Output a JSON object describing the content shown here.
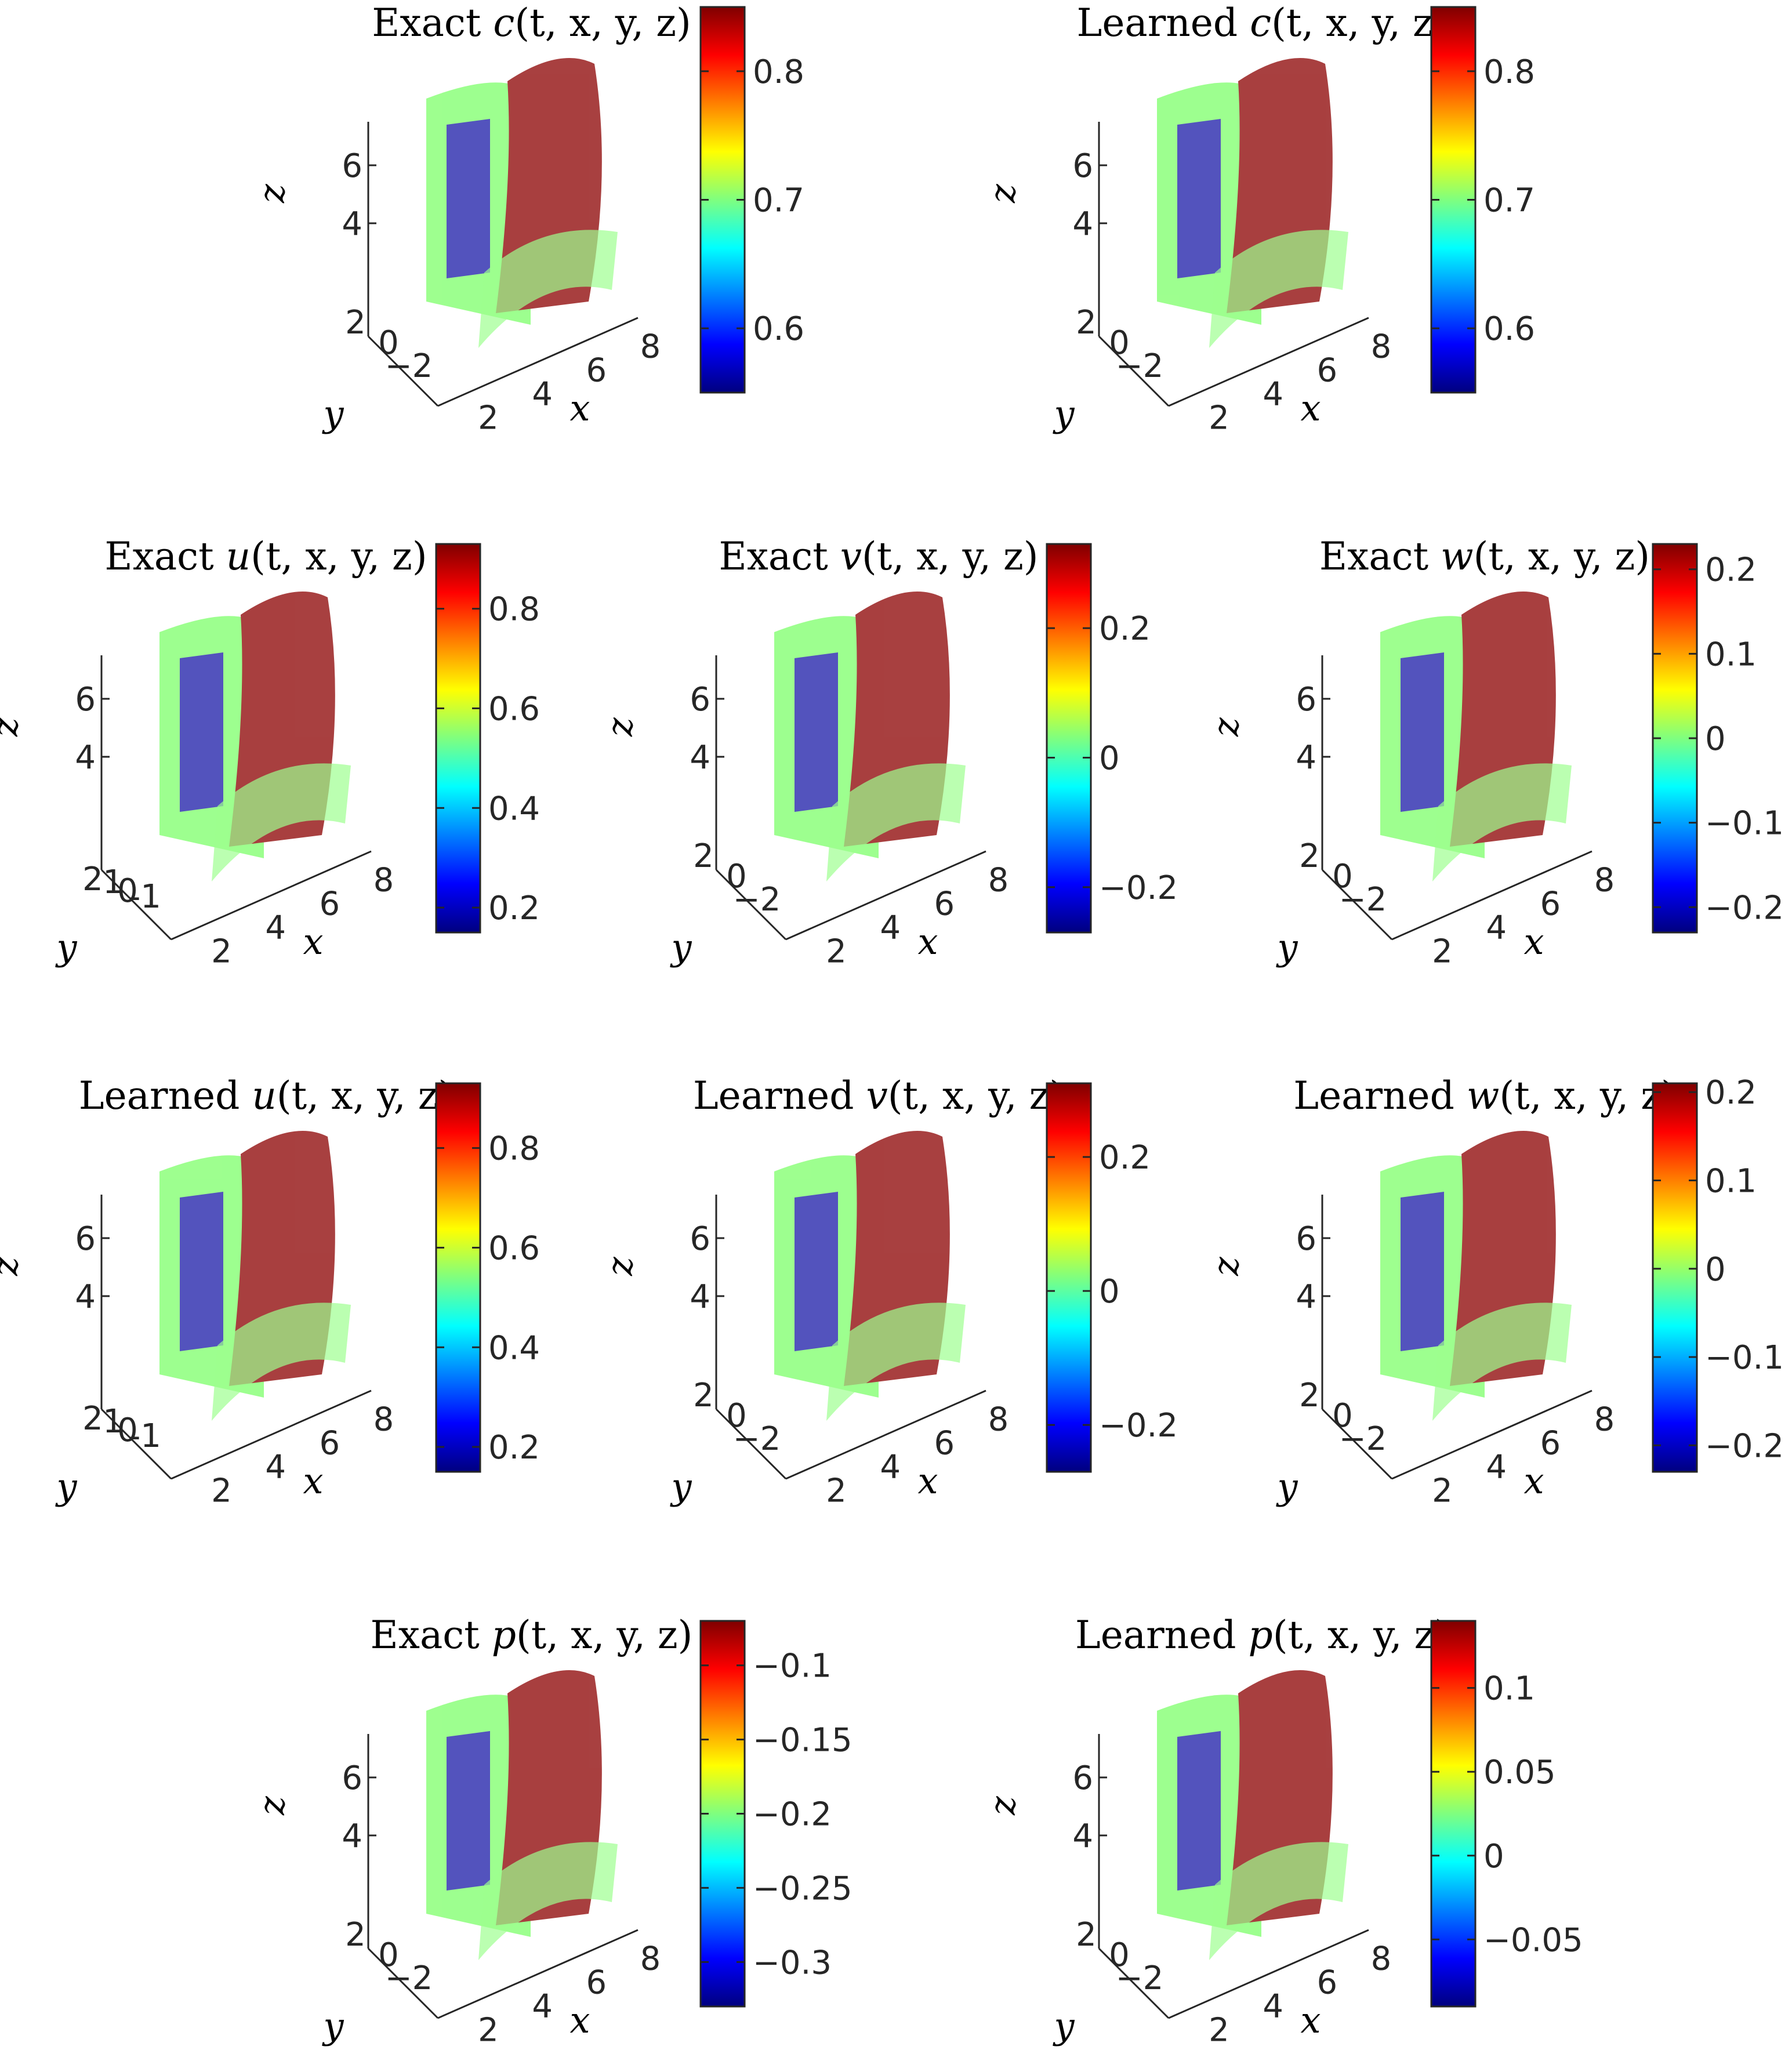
{
  "colormap": [
    "#00007f",
    "#0000ff",
    "#007fff",
    "#00ffff",
    "#7fff7f",
    "#ffff00",
    "#ff7f00",
    "#ff0000",
    "#7f0000"
  ],
  "chart_data": [
    {
      "id": "exact-c",
      "type": "isosurface-3d",
      "title_prefix": "Exact",
      "var": "c",
      "args": "(t, x, y, z)",
      "xlabel": "x",
      "ylabel": "y",
      "zlabel": "z",
      "x_ticks": [
        "2",
        "4",
        "6",
        "8"
      ],
      "y_ticks": [
        "2",
        "0",
        "−2"
      ],
      "z_ticks": [
        "6",
        "4"
      ],
      "colorbar": {
        "range": [
          0.55,
          0.85
        ],
        "ticks": [
          {
            "v": 0.6,
            "label": "0.6"
          },
          {
            "v": 0.7,
            "label": "0.7"
          },
          {
            "v": 0.8,
            "label": "0.8"
          }
        ]
      }
    },
    {
      "id": "learned-c",
      "type": "isosurface-3d",
      "title_prefix": "Learned",
      "var": "c",
      "args": "(t, x, y, z)",
      "xlabel": "x",
      "ylabel": "y",
      "zlabel": "z",
      "x_ticks": [
        "2",
        "4",
        "6",
        "8"
      ],
      "y_ticks": [
        "2",
        "0",
        "−2"
      ],
      "z_ticks": [
        "6",
        "4"
      ],
      "colorbar": {
        "range": [
          0.55,
          0.85
        ],
        "ticks": [
          {
            "v": 0.6,
            "label": "0.6"
          },
          {
            "v": 0.7,
            "label": "0.7"
          },
          {
            "v": 0.8,
            "label": "0.8"
          }
        ]
      }
    },
    {
      "id": "exact-u",
      "type": "isosurface-3d",
      "title_prefix": "Exact",
      "var": "u",
      "args": "(t, x, y, z)",
      "xlabel": "x",
      "ylabel": "y",
      "zlabel": "z",
      "x_ticks": [
        "2",
        "4",
        "6",
        "8"
      ],
      "y_ticks": [
        "2",
        "1",
        "0",
        "-1"
      ],
      "z_ticks": [
        "6",
        "4"
      ],
      "colorbar": {
        "range": [
          0.15,
          0.93
        ],
        "ticks": [
          {
            "v": 0.2,
            "label": "0.2"
          },
          {
            "v": 0.4,
            "label": "0.4"
          },
          {
            "v": 0.6,
            "label": "0.6"
          },
          {
            "v": 0.8,
            "label": "0.8"
          }
        ]
      }
    },
    {
      "id": "exact-v",
      "type": "isosurface-3d",
      "title_prefix": "Exact",
      "var": "v",
      "args": "(t, x, y, z)",
      "xlabel": "x",
      "ylabel": "y",
      "zlabel": "z",
      "x_ticks": [
        "2",
        "4",
        "6",
        "8"
      ],
      "y_ticks": [
        "2",
        "0",
        "−2"
      ],
      "z_ticks": [
        "6",
        "4"
      ],
      "colorbar": {
        "range": [
          -0.27,
          0.33
        ],
        "ticks": [
          {
            "v": -0.2,
            "label": "−0.2"
          },
          {
            "v": 0,
            "label": "0"
          },
          {
            "v": 0.2,
            "label": "0.2"
          }
        ]
      }
    },
    {
      "id": "exact-w",
      "type": "isosurface-3d",
      "title_prefix": "Exact",
      "var": "w",
      "args": "(t, x, y, z)",
      "xlabel": "x",
      "ylabel": "y",
      "zlabel": "z",
      "x_ticks": [
        "2",
        "4",
        "6",
        "8"
      ],
      "y_ticks": [
        "2",
        "0",
        "−2"
      ],
      "z_ticks": [
        "6",
        "4"
      ],
      "colorbar": {
        "range": [
          -0.23,
          0.23
        ],
        "ticks": [
          {
            "v": -0.2,
            "label": "−0.2"
          },
          {
            "v": -0.1,
            "label": "−0.1"
          },
          {
            "v": 0,
            "label": "0"
          },
          {
            "v": 0.1,
            "label": "0.1"
          },
          {
            "v": 0.2,
            "label": "0.2"
          }
        ]
      }
    },
    {
      "id": "learned-u",
      "type": "isosurface-3d",
      "title_prefix": "Learned",
      "var": "u",
      "args": "(t, x, y, z)",
      "xlabel": "x",
      "ylabel": "y",
      "zlabel": "z",
      "x_ticks": [
        "2",
        "4",
        "6",
        "8"
      ],
      "y_ticks": [
        "2",
        "1",
        "0",
        "-1"
      ],
      "z_ticks": [
        "6",
        "4"
      ],
      "colorbar": {
        "range": [
          0.15,
          0.93
        ],
        "ticks": [
          {
            "v": 0.2,
            "label": "0.2"
          },
          {
            "v": 0.4,
            "label": "0.4"
          },
          {
            "v": 0.6,
            "label": "0.6"
          },
          {
            "v": 0.8,
            "label": "0.8"
          }
        ]
      }
    },
    {
      "id": "learned-v",
      "type": "isosurface-3d",
      "title_prefix": "Learned",
      "var": "v",
      "args": "(t, x, y, z)",
      "xlabel": "x",
      "ylabel": "y",
      "zlabel": "z",
      "x_ticks": [
        "2",
        "4",
        "6",
        "8"
      ],
      "y_ticks": [
        "2",
        "0",
        "−2"
      ],
      "z_ticks": [
        "6",
        "4"
      ],
      "colorbar": {
        "range": [
          -0.27,
          0.31
        ],
        "ticks": [
          {
            "v": -0.2,
            "label": "−0.2"
          },
          {
            "v": 0,
            "label": "0"
          },
          {
            "v": 0.2,
            "label": "0.2"
          }
        ]
      }
    },
    {
      "id": "learned-w",
      "type": "isosurface-3d",
      "title_prefix": "Learned",
      "var": "w",
      "args": "(t, x, y, z)",
      "xlabel": "x",
      "ylabel": "y",
      "zlabel": "z",
      "x_ticks": [
        "2",
        "4",
        "6",
        "8"
      ],
      "y_ticks": [
        "2",
        "0",
        "−2"
      ],
      "z_ticks": [
        "6",
        "4"
      ],
      "colorbar": {
        "range": [
          -0.23,
          0.21
        ],
        "ticks": [
          {
            "v": -0.2,
            "label": "−0.2"
          },
          {
            "v": -0.1,
            "label": "−0.1"
          },
          {
            "v": 0,
            "label": "0"
          },
          {
            "v": 0.1,
            "label": "0.1"
          },
          {
            "v": 0.2,
            "label": "0.2"
          }
        ]
      }
    },
    {
      "id": "exact-p",
      "type": "isosurface-3d",
      "title_prefix": "Exact",
      "var": "p",
      "args": "(t, x, y, z)",
      "xlabel": "x",
      "ylabel": "y",
      "zlabel": "z",
      "x_ticks": [
        "2",
        "4",
        "6",
        "8"
      ],
      "y_ticks": [
        "2",
        "0",
        "−2"
      ],
      "z_ticks": [
        "6",
        "4"
      ],
      "colorbar": {
        "range": [
          -0.33,
          -0.07
        ],
        "ticks": [
          {
            "v": -0.3,
            "label": "−0.3"
          },
          {
            "v": -0.25,
            "label": "−0.25"
          },
          {
            "v": -0.2,
            "label": "−0.2"
          },
          {
            "v": -0.15,
            "label": "−0.15"
          },
          {
            "v": -0.1,
            "label": "−0.1"
          }
        ]
      }
    },
    {
      "id": "learned-p",
      "type": "isosurface-3d",
      "title_prefix": "Learned",
      "var": "p",
      "args": "(t, x, y, z)",
      "xlabel": "x",
      "ylabel": "y",
      "zlabel": "z",
      "x_ticks": [
        "2",
        "4",
        "6",
        "8"
      ],
      "y_ticks": [
        "2",
        "0",
        "−2"
      ],
      "z_ticks": [
        "6",
        "4"
      ],
      "colorbar": {
        "range": [
          -0.09,
          0.14
        ],
        "ticks": [
          {
            "v": -0.05,
            "label": "−0.05"
          },
          {
            "v": 0,
            "label": "0"
          },
          {
            "v": 0.05,
            "label": "0.05"
          },
          {
            "v": 0.1,
            "label": "0.1"
          }
        ]
      }
    }
  ]
}
